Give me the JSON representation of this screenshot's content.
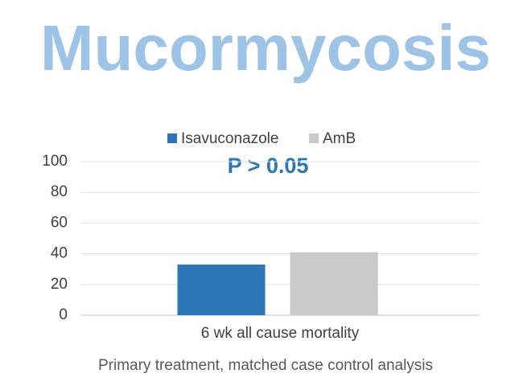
{
  "chart_data": {
    "type": "bar",
    "title": "Mucormycosis",
    "categories": [
      "6 wk all cause mortality"
    ],
    "series": [
      {
        "name": "Isavuconazole",
        "color": "#2e75b6",
        "values": [
          33
        ]
      },
      {
        "name": "AmB",
        "color": "#c9c9c9",
        "values": [
          41
        ]
      }
    ],
    "ylim": [
      0,
      100
    ],
    "yticks": [
      0,
      20,
      40,
      60,
      80,
      100
    ],
    "grid": true,
    "legend": "top",
    "annotation": "P > 0.05",
    "note": "Primary treatment, matched case control analysis"
  }
}
